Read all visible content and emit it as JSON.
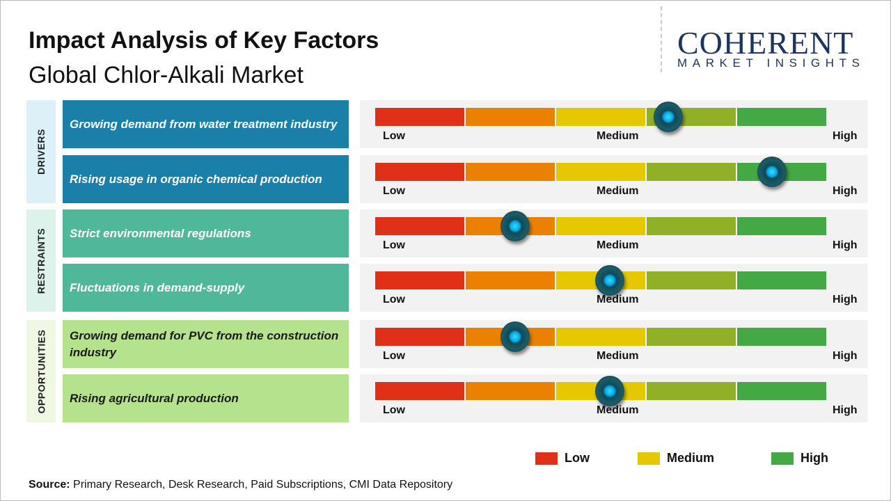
{
  "title": "Impact Analysis of Key Factors",
  "subtitle": "Global Chlor-Alkali Market",
  "logo": {
    "name": "COHERENT",
    "tagline": "MARKET INSIGHTS"
  },
  "source": {
    "label": "Source:",
    "text": " Primary Research, Desk Research, Paid Subscriptions, CMI Data Repository"
  },
  "scale_labels": {
    "low": "Low",
    "medium": "Medium",
    "high": "High"
  },
  "colors": {
    "segments": [
      "#e03018",
      "#ec8000",
      "#e6c800",
      "#90b028",
      "#44a844"
    ],
    "drivers": "#1a80aa",
    "restraints": "#50b89a",
    "opportunities": "#b5e28c"
  },
  "legend": [
    {
      "label": "Low",
      "color": "#e03018"
    },
    {
      "label": "Medium",
      "color": "#e6c800"
    },
    {
      "label": "High",
      "color": "#44a844"
    }
  ],
  "chart_data": {
    "type": "gauge-table",
    "scale": [
      "Low",
      "Medium",
      "High"
    ],
    "categories": [
      {
        "name": "DRIVERS",
        "factors": [
          {
            "label": "Growing demand from water treatment industry",
            "impact": 0.65
          },
          {
            "label": "Rising usage in organic chemical production",
            "impact": 0.88
          }
        ]
      },
      {
        "name": "RESTRAINTS",
        "factors": [
          {
            "label": "Strict environmental regulations",
            "impact": 0.31
          },
          {
            "label": "Fluctuations in demand-supply",
            "impact": 0.52
          }
        ]
      },
      {
        "name": "OPPORTUNITIES",
        "factors": [
          {
            "label": "Growing demand for PVC from the construction industry",
            "impact": 0.31
          },
          {
            "label": "Rising agricultural production",
            "impact": 0.52
          }
        ]
      }
    ]
  }
}
